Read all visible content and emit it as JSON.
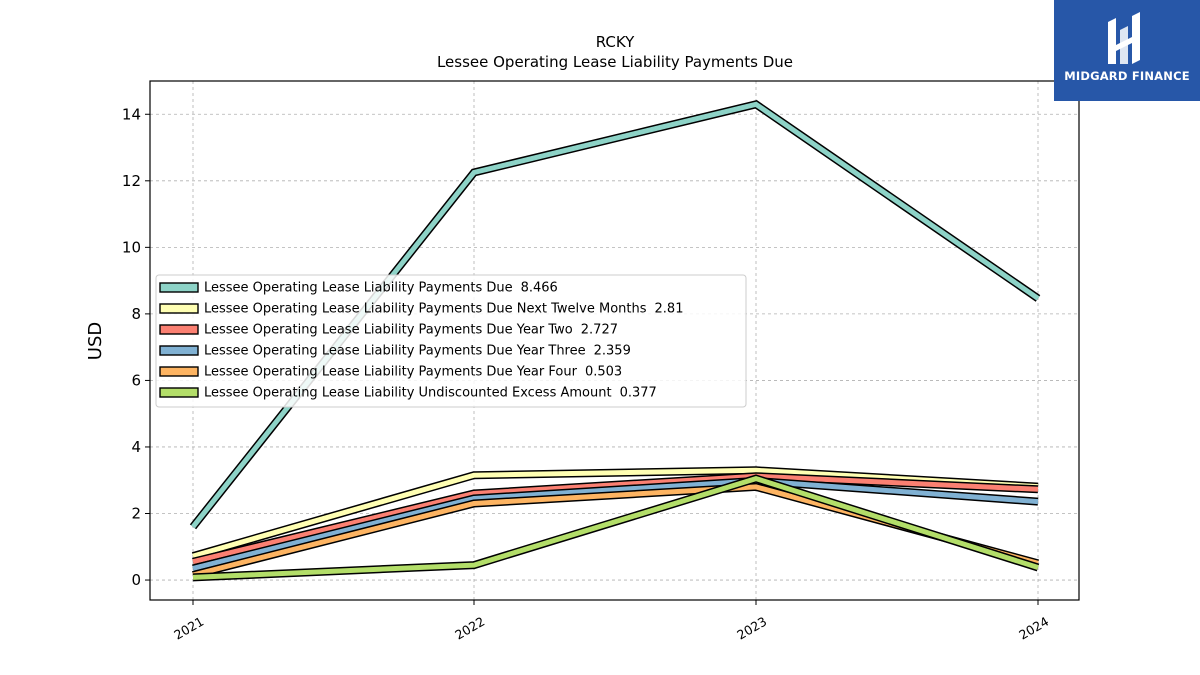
{
  "chart_data": {
    "type": "line",
    "title": "RCKY",
    "subtitle": "Lessee Operating Lease Liability Payments Due",
    "xlabel": "",
    "ylabel": "USD",
    "x": [
      "2021",
      "2022",
      "2023",
      "2024"
    ],
    "ylim": [
      -0.6,
      15.0
    ],
    "yticks": [
      0,
      2,
      4,
      6,
      8,
      10,
      12,
      14
    ],
    "grid": true,
    "legend_position": "center-left",
    "series": [
      {
        "name": "Lessee Operating Lease Liability Payments Due",
        "legend_value": "8.466",
        "color": "#8dd3c7",
        "values": [
          1.6,
          12.25,
          14.3,
          8.466
        ]
      },
      {
        "name": "Lessee Operating Lease Liability Payments Due Next Twelve Months",
        "legend_value": "2.81",
        "color": "#ffffb3",
        "values": [
          0.72,
          3.15,
          3.3,
          2.81
        ]
      },
      {
        "name": "Lessee Operating Lease Liability Payments Due Year Two",
        "legend_value": "2.727",
        "color": "#fb8072",
        "values": [
          0.55,
          2.6,
          3.12,
          2.727
        ]
      },
      {
        "name": "Lessee Operating Lease Liability Payments Due Year Three",
        "legend_value": "2.359",
        "color": "#80b1d3",
        "values": [
          0.35,
          2.45,
          2.98,
          2.359
        ]
      },
      {
        "name": "Lessee Operating Lease Liability Payments Due Year Four",
        "legend_value": "0.503",
        "color": "#fdb462",
        "values": [
          0.15,
          2.3,
          2.8,
          0.503
        ]
      },
      {
        "name": "Lessee Operating Lease Liability Undiscounted Excess Amount",
        "legend_value": "0.377",
        "color": "#b3de69",
        "values": [
          0.08,
          0.45,
          3.05,
          0.377
        ]
      }
    ]
  },
  "logo": {
    "text": "MIDGARD FINANCE",
    "color": "#2757a8"
  }
}
